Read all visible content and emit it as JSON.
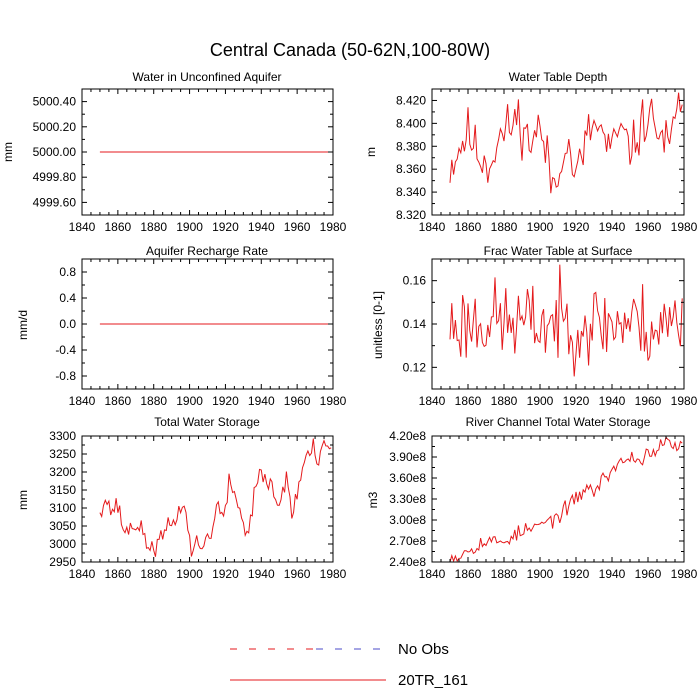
{
  "figure_title": "Central Canada (50-62N,100-80W)",
  "colors": {
    "model": "#e41a1c",
    "obs_red": "#e41a1c",
    "obs_blue": "#4b4bc8",
    "axis": "#000000"
  },
  "legend": {
    "obs_label": "No Obs",
    "model_label": "20TR_161"
  },
  "chart_data": [
    {
      "type": "line",
      "title": "Water in Unconfined Aquifer",
      "ylabel": "mm",
      "xlim": [
        1840,
        1980
      ],
      "ylim": [
        4999.5,
        5000.5
      ],
      "xticks": [
        1840,
        1860,
        1880,
        1900,
        1920,
        1940,
        1960,
        1980
      ],
      "yticks": [
        4999.6,
        4999.8,
        5000.0,
        5000.2,
        5000.4
      ],
      "ytick_labels": [
        "4999.60",
        "4999.80",
        "5000.00",
        "5000.20",
        "5000.40"
      ],
      "series": {
        "name": "20TR_161",
        "kind": "constant",
        "x": [
          1850,
          1979
        ],
        "y": 5000.0
      }
    },
    {
      "type": "line",
      "title": "Water Table Depth",
      "ylabel": "m",
      "xlim": [
        1840,
        1980
      ],
      "ylim": [
        8.32,
        8.43
      ],
      "xticks": [
        1840,
        1860,
        1880,
        1900,
        1920,
        1940,
        1960,
        1980
      ],
      "yticks": [
        8.32,
        8.34,
        8.36,
        8.38,
        8.4,
        8.42
      ],
      "ytick_labels": [
        "8.320",
        "8.340",
        "8.360",
        "8.380",
        "8.400",
        "8.420"
      ],
      "series": {
        "name": "20TR_161",
        "kind": "noisy",
        "x": [
          1850,
          1979
        ],
        "seed": 11,
        "noise": 0.011,
        "knots": [
          [
            1850,
            8.362
          ],
          [
            1856,
            8.381
          ],
          [
            1860,
            8.392
          ],
          [
            1866,
            8.372
          ],
          [
            1872,
            8.364
          ],
          [
            1876,
            8.384
          ],
          [
            1882,
            8.395
          ],
          [
            1888,
            8.405
          ],
          [
            1894,
            8.383
          ],
          [
            1899,
            8.396
          ],
          [
            1902,
            8.383
          ],
          [
            1906,
            8.352
          ],
          [
            1909,
            8.345
          ],
          [
            1913,
            8.385
          ],
          [
            1917,
            8.372
          ],
          [
            1920,
            8.352
          ],
          [
            1924,
            8.375
          ],
          [
            1928,
            8.395
          ],
          [
            1932,
            8.398
          ],
          [
            1936,
            8.385
          ],
          [
            1940,
            8.374
          ],
          [
            1944,
            8.395
          ],
          [
            1948,
            8.382
          ],
          [
            1952,
            8.379
          ],
          [
            1956,
            8.397
          ],
          [
            1960,
            8.407
          ],
          [
            1964,
            8.4
          ],
          [
            1968,
            8.386
          ],
          [
            1972,
            8.378
          ],
          [
            1976,
            8.408
          ],
          [
            1979,
            8.422
          ]
        ]
      }
    },
    {
      "type": "line",
      "title": "Aquifer Recharge Rate",
      "ylabel": "mm/d",
      "xlim": [
        1840,
        1980
      ],
      "ylim": [
        -1.0,
        1.0
      ],
      "xticks": [
        1840,
        1860,
        1880,
        1900,
        1920,
        1940,
        1960,
        1980
      ],
      "yticks": [
        -0.8,
        -0.4,
        0.0,
        0.4,
        0.8
      ],
      "ytick_labels": [
        "-0.8",
        "-0.4",
        "0.0",
        "0.4",
        "0.8"
      ],
      "series": {
        "name": "20TR_161",
        "kind": "constant",
        "x": [
          1850,
          1979
        ],
        "y": 0.0
      }
    },
    {
      "type": "line",
      "title": "Frac Water Table at Surface",
      "ylabel": "unitless [0-1]",
      "xlim": [
        1840,
        1980
      ],
      "ylim": [
        0.11,
        0.17
      ],
      "xticks": [
        1840,
        1860,
        1880,
        1900,
        1920,
        1940,
        1960,
        1980
      ],
      "yticks": [
        0.12,
        0.14,
        0.16
      ],
      "ytick_labels": [
        "0.12",
        "0.14",
        "0.16"
      ],
      "series": {
        "name": "20TR_161",
        "kind": "noisy",
        "x": [
          1850,
          1979
        ],
        "seed": 23,
        "noise": 0.0095,
        "knots": [
          [
            1850,
            0.139
          ],
          [
            1870,
            0.142
          ],
          [
            1890,
            0.14
          ],
          [
            1910,
            0.141
          ],
          [
            1930,
            0.14
          ],
          [
            1950,
            0.141
          ],
          [
            1965,
            0.138
          ],
          [
            1979,
            0.142
          ]
        ]
      }
    },
    {
      "type": "line",
      "title": "Total Water Storage",
      "ylabel": "mm",
      "xlim": [
        1840,
        1980
      ],
      "ylim": [
        2950,
        3300
      ],
      "xticks": [
        1840,
        1860,
        1880,
        1900,
        1920,
        1940,
        1960,
        1980
      ],
      "yticks": [
        2950,
        3000,
        3050,
        3100,
        3150,
        3200,
        3250,
        3300
      ],
      "ytick_labels": [
        "2950",
        "3000",
        "3050",
        "3100",
        "3150",
        "3200",
        "3250",
        "3300"
      ],
      "series": {
        "name": "20TR_161",
        "kind": "noisy",
        "x": [
          1850,
          1979
        ],
        "seed": 37,
        "noise": 14,
        "knots": [
          [
            1850,
            3100
          ],
          [
            1853,
            3125
          ],
          [
            1856,
            3095
          ],
          [
            1860,
            3105
          ],
          [
            1863,
            3045
          ],
          [
            1866,
            3035
          ],
          [
            1870,
            3060
          ],
          [
            1874,
            3025
          ],
          [
            1878,
            2990
          ],
          [
            1882,
            2995
          ],
          [
            1886,
            3030
          ],
          [
            1890,
            3055
          ],
          [
            1894,
            3085
          ],
          [
            1897,
            3125
          ],
          [
            1899,
            3035
          ],
          [
            1901,
            2985
          ],
          [
            1904,
            3005
          ],
          [
            1907,
            2985
          ],
          [
            1910,
            3020
          ],
          [
            1913,
            3050
          ],
          [
            1916,
            3115
          ],
          [
            1919,
            3060
          ],
          [
            1922,
            3165
          ],
          [
            1925,
            3150
          ],
          [
            1928,
            3090
          ],
          [
            1931,
            3040
          ],
          [
            1933,
            3025
          ],
          [
            1936,
            3150
          ],
          [
            1939,
            3205
          ],
          [
            1942,
            3165
          ],
          [
            1945,
            3170
          ],
          [
            1948,
            3125
          ],
          [
            1951,
            3105
          ],
          [
            1954,
            3200
          ],
          [
            1957,
            3080
          ],
          [
            1960,
            3140
          ],
          [
            1963,
            3210
          ],
          [
            1966,
            3250
          ],
          [
            1969,
            3265
          ],
          [
            1971,
            3220
          ],
          [
            1974,
            3260
          ],
          [
            1979,
            3265
          ]
        ]
      }
    },
    {
      "type": "line",
      "title": "River Channel Total Water Storage",
      "ylabel": "m3",
      "xlim": [
        1840,
        1980
      ],
      "ylim": [
        240000000,
        420000000
      ],
      "xticks": [
        1840,
        1860,
        1880,
        1900,
        1920,
        1940,
        1960,
        1980
      ],
      "yticks": [
        240000000,
        270000000,
        300000000,
        330000000,
        360000000,
        390000000,
        420000000
      ],
      "ytick_labels": [
        "2.40e8",
        "2.70e8",
        "3.00e8",
        "3.30e8",
        "3.60e8",
        "3.90e8",
        "4.20e8"
      ],
      "series": {
        "name": "20TR_161",
        "kind": "noisy",
        "x": [
          1850,
          1979
        ],
        "seed": 53,
        "noise": 5500000,
        "knots": [
          [
            1850,
            248000000
          ],
          [
            1855,
            249000000
          ],
          [
            1860,
            258000000
          ],
          [
            1866,
            266000000
          ],
          [
            1872,
            270000000
          ],
          [
            1878,
            268000000
          ],
          [
            1884,
            276000000
          ],
          [
            1890,
            283000000
          ],
          [
            1896,
            288000000
          ],
          [
            1902,
            295000000
          ],
          [
            1908,
            302000000
          ],
          [
            1914,
            314000000
          ],
          [
            1920,
            330000000
          ],
          [
            1926,
            347000000
          ],
          [
            1930,
            340000000
          ],
          [
            1934,
            355000000
          ],
          [
            1940,
            372000000
          ],
          [
            1946,
            384000000
          ],
          [
            1950,
            389000000
          ],
          [
            1955,
            386000000
          ],
          [
            1960,
            395000000
          ],
          [
            1966,
            402000000
          ],
          [
            1970,
            410000000
          ],
          [
            1975,
            406000000
          ],
          [
            1979,
            405000000
          ]
        ]
      }
    }
  ]
}
